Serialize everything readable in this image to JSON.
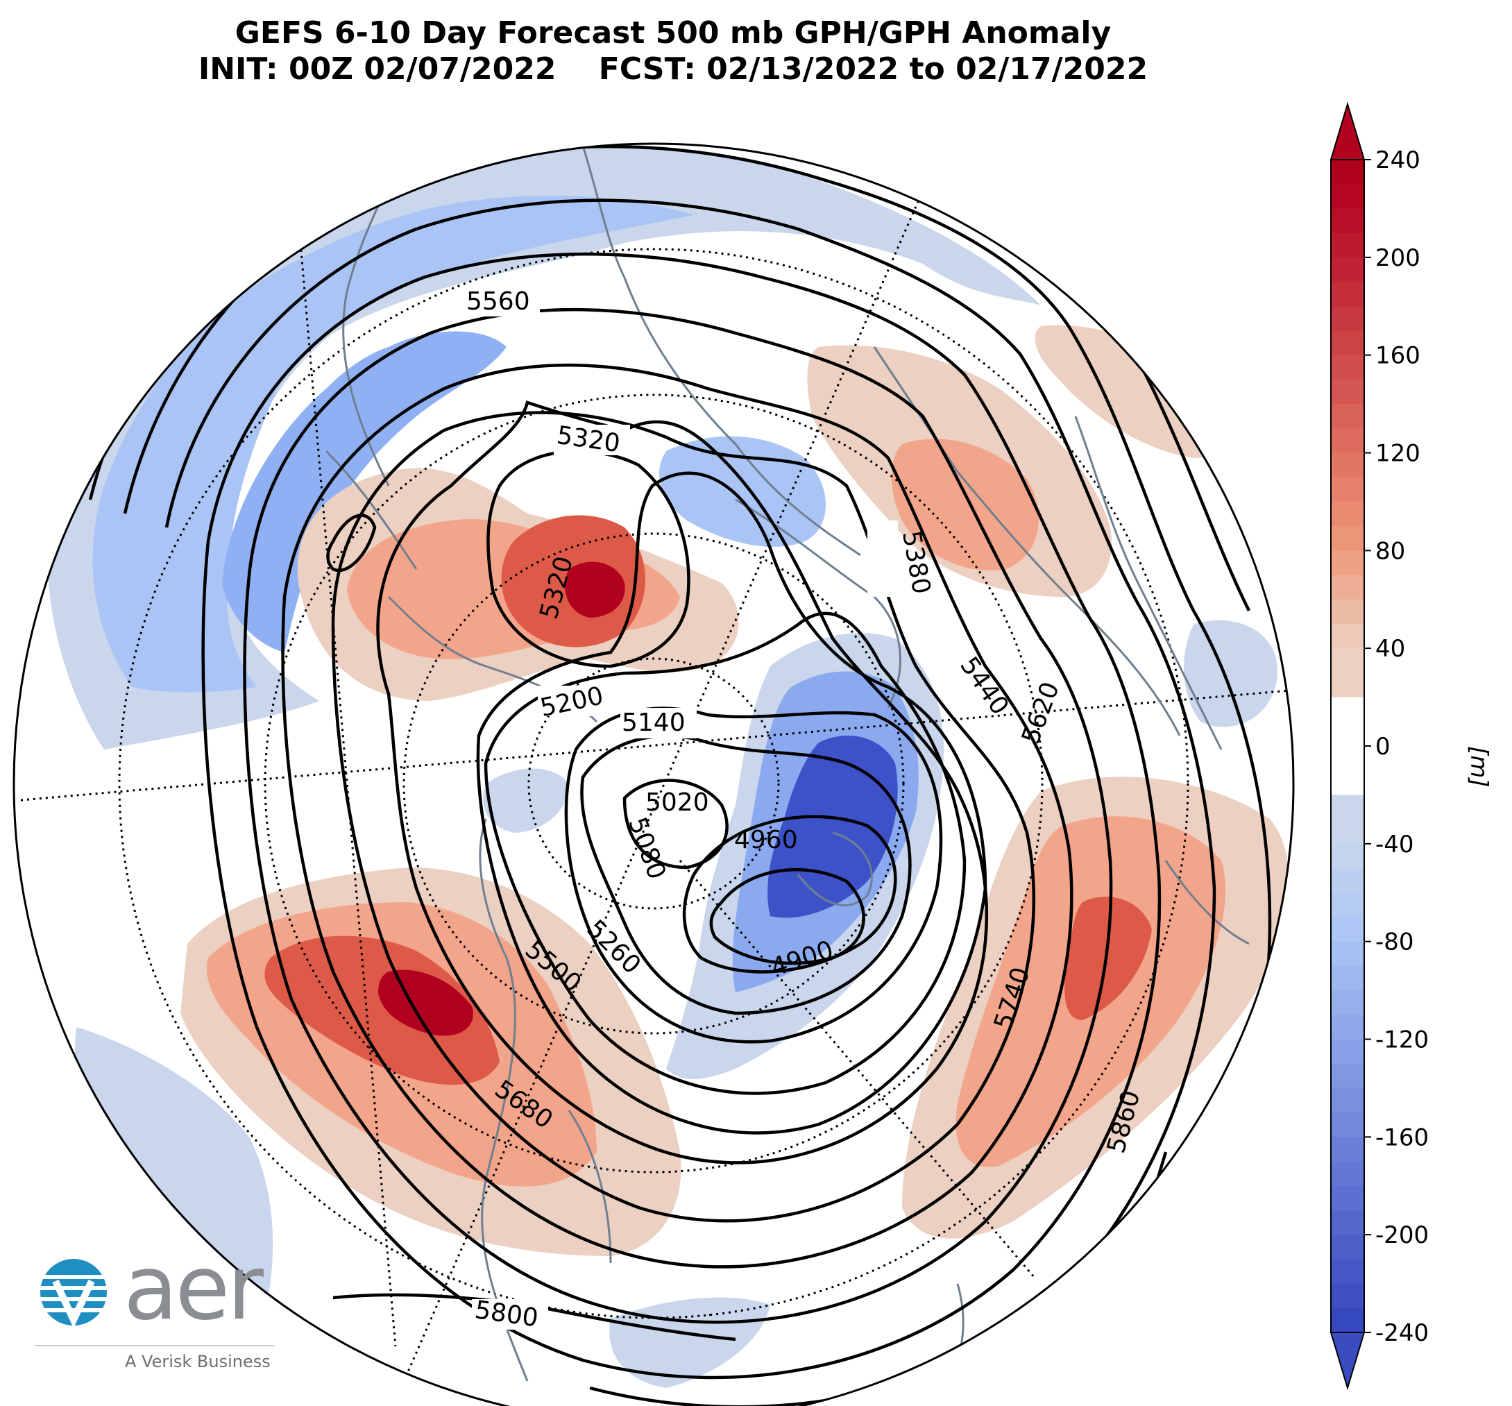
{
  "title": {
    "line1": "GEFS 6-10 Day Forecast 500 mb GPH/GPH Anomaly",
    "line2": "INIT: 00Z 02/07/2022    FCST: 02/13/2022 to 02/17/2022"
  },
  "colorbar": {
    "unit_label": "[m]",
    "tick_labels": [
      "240",
      "200",
      "160",
      "120",
      "80",
      "40",
      "0",
      "-40",
      "-80",
      "-120",
      "-160",
      "-200",
      "-240"
    ],
    "ticks": [
      240,
      200,
      160,
      120,
      80,
      40,
      0,
      -40,
      -80,
      -120,
      -160,
      -200,
      -240
    ],
    "colors": {
      "pos_max": "#b2001f",
      "pos_80": "#ef9a7a",
      "pos_40": "#ecd0c2",
      "zero": "#ffffff",
      "neg_40": "#c9d6ec",
      "neg_80": "#a9c4f5",
      "neg_max": "#3a4cc0"
    }
  },
  "contour_labels": [
    "5560",
    "5320",
    "5380",
    "5320",
    "5440",
    "5620",
    "5200",
    "5140",
    "5020",
    "5080",
    "4960",
    "5260",
    "4900",
    "5500",
    "5740",
    "5680",
    "5860",
    "5800"
  ],
  "anomaly_colors": {
    "strong_red": "#b2001f",
    "red": "#dd5a48",
    "salmon": "#f2a58a",
    "light_salmon": "#ecd0c2",
    "light_blue": "#c9d6ec",
    "blue": "#9dbcf5",
    "deep_blue": "#3d52c8",
    "contour": "#000000",
    "coastline": "#6f7f8f",
    "gridline": "#000000"
  },
  "logo": {
    "word": "aer",
    "tagline": "A Verisk Business",
    "icon_name": "aer-globe-logo-icon",
    "colors": {
      "teal": "#1f8fc2",
      "grey": "#8a8d91"
    }
  }
}
